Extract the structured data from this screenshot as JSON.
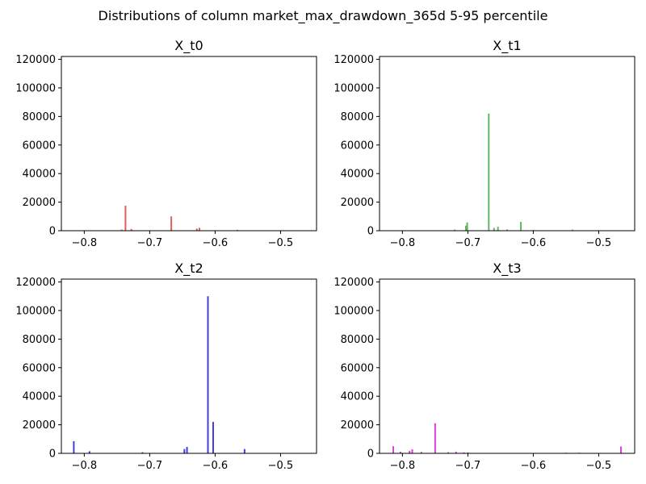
{
  "figure_title": "Distributions of column market_max_drawdown_365d 5-95 percentile",
  "chart_data": [
    {
      "type": "bar",
      "title": "X_t0",
      "color": "#d62728",
      "xlim": [
        -0.835,
        -0.445
      ],
      "ylim": [
        0,
        122000
      ],
      "xticks": [
        -0.8,
        -0.7,
        -0.6,
        -0.5
      ],
      "xtick_labels": [
        "−0.8",
        "−0.7",
        "−0.6",
        "−0.5"
      ],
      "yticks": [
        0,
        20000,
        40000,
        60000,
        80000,
        100000,
        120000
      ],
      "ytick_labels": [
        "0",
        "20000",
        "40000",
        "60000",
        "80000",
        "100000",
        "120000"
      ],
      "grid": false,
      "x": [
        -0.743,
        -0.737,
        -0.728,
        -0.667,
        -0.628,
        -0.624,
        -0.566
      ],
      "values": [
        800,
        17500,
        1200,
        10000,
        1500,
        2000,
        600
      ]
    },
    {
      "type": "bar",
      "title": "X_t1",
      "color": "#2ca02c",
      "xlim": [
        -0.835,
        -0.445
      ],
      "ylim": [
        0,
        122000
      ],
      "xticks": [
        -0.8,
        -0.7,
        -0.6,
        -0.5
      ],
      "xtick_labels": [
        "−0.8",
        "−0.7",
        "−0.6",
        "−0.5"
      ],
      "yticks": [
        0,
        20000,
        40000,
        60000,
        80000,
        100000,
        120000
      ],
      "ytick_labels": [
        "0",
        "20000",
        "40000",
        "60000",
        "80000",
        "100000",
        "120000"
      ],
      "grid": false,
      "x": [
        -0.72,
        -0.703,
        -0.701,
        -0.668,
        -0.66,
        -0.654,
        -0.64,
        -0.619,
        -0.6,
        -0.54
      ],
      "values": [
        800,
        3500,
        5800,
        82000,
        2000,
        2800,
        900,
        6200,
        500,
        800
      ]
    },
    {
      "type": "bar",
      "title": "X_t2",
      "color": "#0000cc",
      "xlim": [
        -0.835,
        -0.445
      ],
      "ylim": [
        0,
        122000
      ],
      "xticks": [
        -0.8,
        -0.7,
        -0.6,
        -0.5
      ],
      "xtick_labels": [
        "−0.8",
        "−0.7",
        "−0.6",
        "−0.5"
      ],
      "yticks": [
        0,
        20000,
        40000,
        60000,
        80000,
        100000,
        120000
      ],
      "ytick_labels": [
        "0",
        "20000",
        "40000",
        "60000",
        "80000",
        "100000",
        "120000"
      ],
      "grid": false,
      "x": [
        -0.816,
        -0.792,
        -0.711,
        -0.647,
        -0.643,
        -0.611,
        -0.603,
        -0.555
      ],
      "values": [
        8500,
        1500,
        800,
        3000,
        4500,
        110000,
        22000,
        3000
      ]
    },
    {
      "type": "bar",
      "title": "X_t3",
      "color": "#cc00cc",
      "xlim": [
        -0.835,
        -0.445
      ],
      "ylim": [
        0,
        122000
      ],
      "xticks": [
        -0.8,
        -0.7,
        -0.6,
        -0.5
      ],
      "xtick_labels": [
        "−0.8",
        "−0.7",
        "−0.6",
        "−0.5"
      ],
      "yticks": [
        0,
        20000,
        40000,
        60000,
        80000,
        100000,
        120000
      ],
      "ytick_labels": [
        "0",
        "20000",
        "40000",
        "60000",
        "80000",
        "100000",
        "120000"
      ],
      "grid": false,
      "x": [
        -0.814,
        -0.803,
        -0.789,
        -0.785,
        -0.771,
        -0.75,
        -0.73,
        -0.718,
        -0.706,
        -0.7,
        -0.55,
        -0.53,
        -0.466
      ],
      "values": [
        5000,
        1200,
        1800,
        2800,
        1000,
        21000,
        800,
        1200,
        700,
        600,
        500,
        500,
        4800
      ]
    }
  ]
}
